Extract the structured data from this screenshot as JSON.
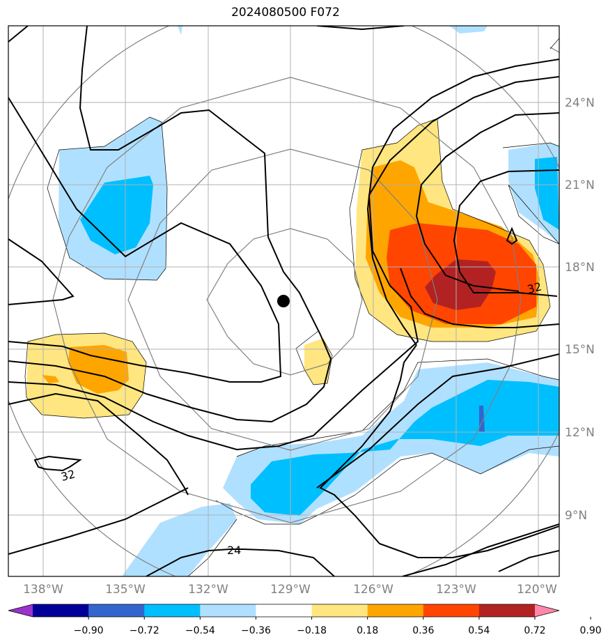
{
  "title": "2024080500 F072",
  "map": {
    "lon_labels": [
      "138°W",
      "135°W",
      "132°W",
      "129°W",
      "126°W",
      "123°W",
      "120°W"
    ],
    "lat_labels": [
      "24°N",
      "21°N",
      "18°N",
      "15°N",
      "12°N",
      "9°N"
    ],
    "storm_center": {
      "lon": -129.3,
      "lat": 16.8
    },
    "contour_labels": [
      "32",
      "32",
      "24"
    ]
  },
  "colorbar": {
    "colors": [
      "#9933cc",
      "#000099",
      "#3366cc",
      "#00bfff",
      "#b0e0ff",
      "#ffffff",
      "#ffe680",
      "#ffa500",
      "#ff4500",
      "#b22222",
      "#ff88aa"
    ],
    "labels": [
      "−0.90",
      "−0.72",
      "−0.54",
      "−0.36",
      "−0.18",
      "0.18",
      "0.36",
      "0.54",
      "0.72",
      "0.90"
    ]
  }
}
